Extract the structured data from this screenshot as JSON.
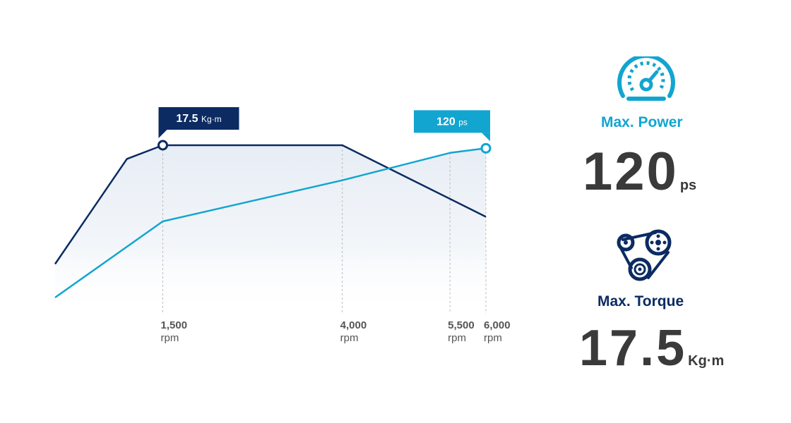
{
  "colors": {
    "torque": "#0b2b62",
    "power": "#12a5d0",
    "grid": "#bbbbbb",
    "text_dark": "#3a3a3a",
    "text_gray": "#555555"
  },
  "chart_data": {
    "type": "line",
    "xlim": [
      0,
      6000
    ],
    "ylim": [
      0,
      1
    ],
    "x_ticks": [
      {
        "value": 1500,
        "label": "1,500",
        "unit": "rpm"
      },
      {
        "value": 4000,
        "label": "4,000",
        "unit": "rpm"
      },
      {
        "value": 5500,
        "label": "5,500",
        "unit": "rpm"
      },
      {
        "value": 6000,
        "label": "6,000",
        "unit": "rpm"
      }
    ],
    "series": [
      {
        "key": "torque",
        "color": "#0b2b62",
        "x": [
          0,
          1000,
          1500,
          4000,
          6000
        ],
        "y": [
          0.22,
          0.91,
          1.0,
          1.0,
          0.53
        ],
        "peak": {
          "x": 1500,
          "label_value": "17.5",
          "label_unit": "Kg·m"
        }
      },
      {
        "key": "power",
        "color": "#12a5d0",
        "x": [
          0,
          1500,
          4000,
          5500,
          6000
        ],
        "y": [
          0.0,
          0.5,
          0.77,
          0.95,
          0.98
        ],
        "peak": {
          "x": 6000,
          "label_value": "120",
          "label_unit": "ps"
        }
      }
    ]
  },
  "specs": {
    "power": {
      "icon": "speedometer-icon",
      "label": "Max. Power",
      "value": "120",
      "unit": "ps"
    },
    "torque": {
      "icon": "belt-pulley-icon",
      "label": "Max. Torque",
      "value": "17.5",
      "unit": "Kg·m"
    }
  }
}
